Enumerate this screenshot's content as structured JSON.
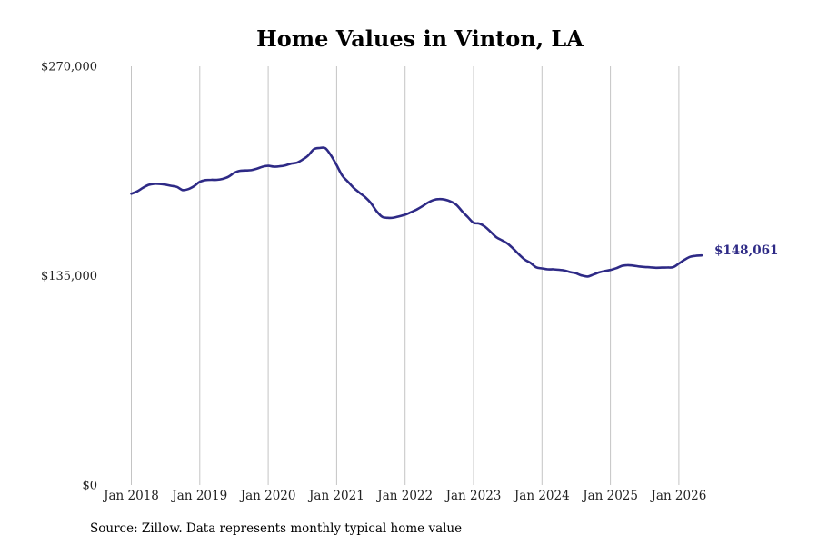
{
  "chart_data": {
    "type": "line",
    "title": "Home Values in Vinton, LA",
    "xlabel": "",
    "ylabel": "",
    "ylim": [
      0,
      270000
    ],
    "y_ticks": [
      "$270,000",
      "$135,000",
      "$0"
    ],
    "y_tick_values": [
      270000,
      135000,
      0
    ],
    "x_ticks": [
      "Jan 2018",
      "Jan 2019",
      "Jan 2020",
      "Jan 2021",
      "Jan 2022",
      "Jan 2023",
      "Jan 2024",
      "Jan 2025",
      "Jan 2026"
    ],
    "x_tick_values": [
      "2018-01",
      "2019-01",
      "2020-01",
      "2021-01",
      "2022-01",
      "2023-01",
      "2024-01",
      "2025-01",
      "2026-01"
    ],
    "grid": "vertical",
    "color": "#2e2a86",
    "end_label": "$148,061",
    "series": [
      {
        "x": [
          "2018-01",
          "2018-02",
          "2018-03",
          "2018-04",
          "2018-05",
          "2018-06",
          "2018-07",
          "2018-08",
          "2018-09",
          "2018-10",
          "2018-11",
          "2018-12",
          "2019-01",
          "2019-02",
          "2019-03",
          "2019-04",
          "2019-05",
          "2019-06",
          "2019-07",
          "2019-08",
          "2019-09",
          "2019-10",
          "2019-11",
          "2019-12",
          "2020-01",
          "2020-02",
          "2020-03",
          "2020-04",
          "2020-05",
          "2020-06",
          "2020-07",
          "2020-08",
          "2020-09",
          "2020-10",
          "2020-11",
          "2020-12",
          "2021-01",
          "2021-02",
          "2021-03",
          "2021-04",
          "2021-05",
          "2021-06",
          "2021-07",
          "2021-08",
          "2021-09",
          "2021-10",
          "2021-11",
          "2021-12",
          "2022-01",
          "2022-02",
          "2022-03",
          "2022-04",
          "2022-05",
          "2022-06",
          "2022-07",
          "2022-08",
          "2022-09",
          "2022-10",
          "2022-11",
          "2022-12",
          "2023-01",
          "2023-02",
          "2023-03",
          "2023-04",
          "2023-05",
          "2023-06",
          "2023-07",
          "2023-08",
          "2023-09",
          "2023-10",
          "2023-11",
          "2023-12",
          "2024-01",
          "2024-02",
          "2024-03",
          "2024-04",
          "2024-05",
          "2024-06",
          "2024-07",
          "2024-08",
          "2024-09",
          "2024-10",
          "2024-11",
          "2024-12",
          "2025-01",
          "2025-02",
          "2025-03",
          "2025-04",
          "2025-05",
          "2025-06",
          "2025-07",
          "2025-08",
          "2025-09",
          "2025-10",
          "2025-11",
          "2025-12",
          "2026-01",
          "2026-02",
          "2026-03",
          "2026-04",
          "2026-05"
        ],
        "values": [
          187800,
          189300,
          191600,
          193500,
          194200,
          194100,
          193600,
          192900,
          192200,
          190200,
          190800,
          192700,
          195500,
          196600,
          196800,
          196800,
          197400,
          198700,
          201200,
          202600,
          202800,
          203000,
          204000,
          205200,
          205800,
          205300,
          205500,
          206100,
          207200,
          207800,
          209800,
          212400,
          216500,
          217300,
          217200,
          212600,
          206200,
          199400,
          195500,
          191600,
          188500,
          185600,
          181800,
          176600,
          172900,
          172300,
          172400,
          173300,
          174300,
          175900,
          177600,
          179700,
          182100,
          183800,
          184400,
          184000,
          182800,
          180600,
          176500,
          172800,
          169100,
          168600,
          166600,
          163300,
          159800,
          157800,
          155600,
          152300,
          148600,
          145300,
          143200,
          140400,
          139700,
          139100,
          139100,
          138800,
          138300,
          137300,
          136500,
          135100,
          134500,
          135700,
          137100,
          138000,
          138700,
          139800,
          141300,
          141800,
          141500,
          141000,
          140600,
          140400,
          140100,
          140200,
          140300,
          140500,
          142800,
          145300,
          147200,
          147800,
          148061
        ]
      }
    ]
  },
  "source_text": "Source: Zillow. Data represents monthly typical home value"
}
